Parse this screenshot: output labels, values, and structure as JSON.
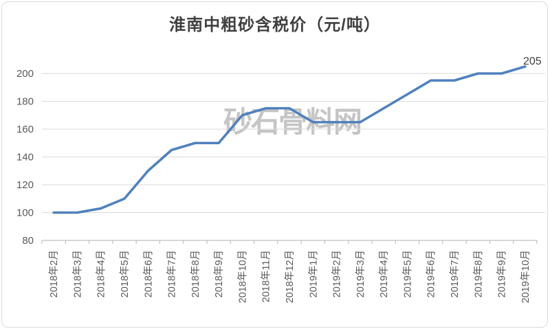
{
  "title": "淮南中粗砂含税价（元/吨）",
  "watermark": "砂石骨料网",
  "chart_data": {
    "type": "line",
    "title": "淮南中粗砂含税价（元/吨）",
    "categories": [
      "2018年2月",
      "2018年3月",
      "2018年4月",
      "2018年5月",
      "2018年6月",
      "2018年7月",
      "2018年8月",
      "2018年9月",
      "2018年10月",
      "2018年11月",
      "2018年12月",
      "2019年1月",
      "2019年2月",
      "2019年3月",
      "2019年4月",
      "2019年5月",
      "2019年6月",
      "2019年7月",
      "2019年8月",
      "2019年9月",
      "2019年10月"
    ],
    "values": [
      100,
      100,
      103,
      110,
      130,
      145,
      150,
      150,
      170,
      175,
      175,
      165,
      165,
      165,
      175,
      185,
      195,
      195,
      200,
      200,
      205
    ],
    "series_name": "淮南中粗砂含税价",
    "xlabel": "",
    "ylabel": "",
    "ylim": [
      80,
      210
    ],
    "yticks": [
      80,
      100,
      120,
      140,
      160,
      180,
      200
    ],
    "grid": true,
    "legend": "none",
    "end_label": "205",
    "line_color": "#4f81bd"
  },
  "colors": {
    "line": "#4f81bd",
    "gridline": "#d9d9d9",
    "axis_line": "#bfbfbf",
    "tick_text": "#595959",
    "title_text": "#404040",
    "data_label_text": "#404040",
    "watermark_text": "#8c8c8c",
    "frame_border": "#d9d9d9",
    "background": "#ffffff"
  }
}
